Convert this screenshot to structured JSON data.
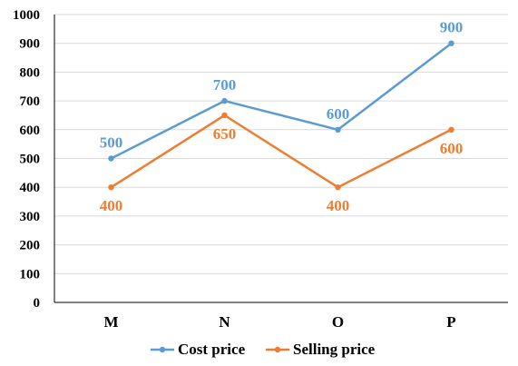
{
  "chart_data": {
    "type": "line",
    "title": "",
    "xlabel": "",
    "ylabel": "",
    "categories": [
      "M",
      "N",
      "O",
      "P"
    ],
    "ylim": [
      0,
      1000
    ],
    "yticks": [
      0,
      100,
      200,
      300,
      400,
      500,
      600,
      700,
      800,
      900,
      1000
    ],
    "grid": "horizontal",
    "legend_position": "bottom",
    "series": [
      {
        "name": "Cost price",
        "color": "#5B9BD5",
        "values": [
          500,
          700,
          600,
          900
        ],
        "label_position": "above"
      },
      {
        "name": "Selling price",
        "color": "#ED7D31",
        "values": [
          400,
          650,
          400,
          600
        ],
        "label_position": "below"
      }
    ]
  }
}
